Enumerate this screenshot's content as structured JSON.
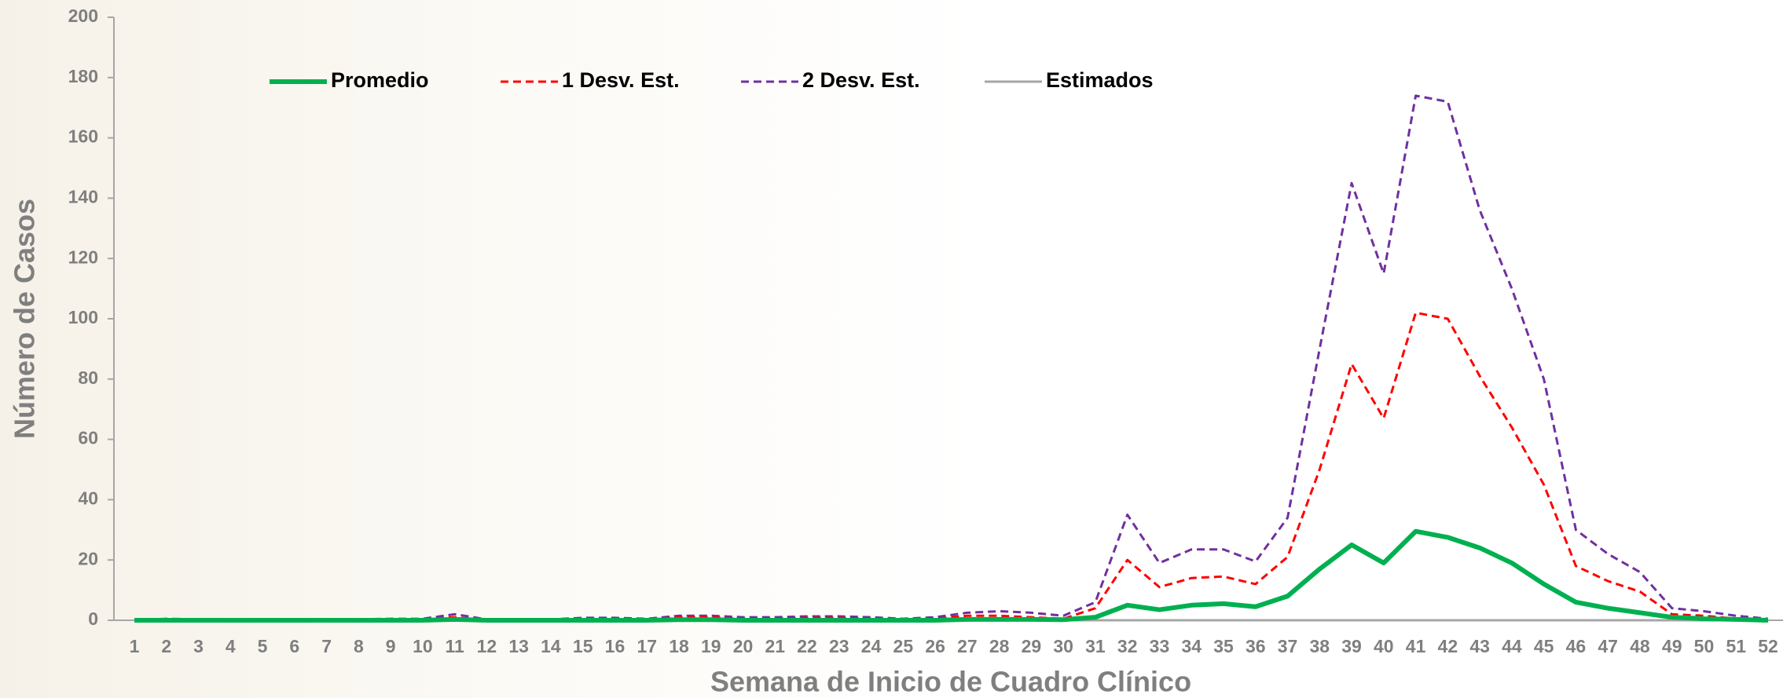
{
  "chart_data": {
    "type": "line",
    "y_label": "Número de Casos",
    "x_label": "Semana de Inicio de Cuadro Clínico",
    "categories": [
      "1",
      "2",
      "3",
      "4",
      "5",
      "6",
      "7",
      "8",
      "9",
      "10",
      "11",
      "12",
      "13",
      "14",
      "15",
      "16",
      "17",
      "18",
      "19",
      "20",
      "21",
      "22",
      "23",
      "24",
      "25",
      "26",
      "27",
      "28",
      "29",
      "30",
      "31",
      "32",
      "33",
      "34",
      "35",
      "36",
      "37",
      "38",
      "39",
      "40",
      "41",
      "42",
      "43",
      "44",
      "45",
      "46",
      "47",
      "48",
      "49",
      "50",
      "51",
      "52"
    ],
    "series": [
      {
        "name": "Promedio",
        "color": "#00b050",
        "width": 6,
        "dashed": false,
        "values": [
          0,
          0,
          0,
          0,
          0,
          0,
          0,
          0,
          0,
          0,
          0.3,
          0,
          0,
          0,
          0,
          0,
          0,
          0.2,
          0.2,
          0,
          0,
          0,
          0,
          0,
          0,
          0,
          0.3,
          0.3,
          0.3,
          0.2,
          1,
          5,
          3.5,
          5,
          5.5,
          4.5,
          8,
          17,
          25,
          19,
          29.5,
          27.5,
          24,
          19,
          12,
          6,
          4,
          2.5,
          1,
          0.5,
          0.3,
          0
        ]
      },
      {
        "name": "1 Desv. Est.",
        "color": "#ff0000",
        "width": 3,
        "dashed": true,
        "values": [
          0.3,
          0.3,
          0.3,
          0.3,
          0.3,
          0.3,
          0.3,
          0.3,
          0.3,
          0.3,
          1,
          0,
          0,
          0.3,
          0.5,
          0.5,
          0.3,
          1,
          1,
          0.5,
          0.5,
          0.8,
          0.8,
          0.5,
          0.3,
          0.5,
          1.5,
          1.5,
          1,
          0.5,
          4,
          20,
          11,
          14,
          14.5,
          12,
          21,
          50,
          85,
          67,
          102,
          100,
          81,
          64,
          45,
          18,
          13,
          9.5,
          2,
          1.5,
          0.5,
          0
        ]
      },
      {
        "name": "2 Desv. Est.",
        "color": "#7030a0",
        "width": 3,
        "dashed": true,
        "values": [
          0,
          0.5,
          0.3,
          0.3,
          0.3,
          0.3,
          0.3,
          0.3,
          0.5,
          0.5,
          2,
          0.3,
          0.3,
          0.3,
          0.8,
          0.8,
          0.5,
          1.5,
          1.5,
          1,
          1,
          1.3,
          1.3,
          1,
          0.5,
          1,
          2.5,
          3,
          2.5,
          1.5,
          6,
          35,
          19,
          23.5,
          23.5,
          19.5,
          34,
          90,
          145,
          115,
          174,
          172,
          136,
          110,
          80,
          30,
          22,
          16,
          4,
          3,
          1.5,
          0.5
        ]
      },
      {
        "name": "Estimados",
        "color": "#a6a6a6",
        "width": 3,
        "dashed": false,
        "values": [
          0,
          0,
          0,
          0,
          0,
          0,
          0,
          0,
          0,
          0,
          0,
          0,
          0,
          0,
          0,
          0,
          0,
          0,
          0,
          0,
          0,
          0,
          0,
          0,
          0,
          0,
          0,
          0,
          0,
          0,
          0,
          0,
          0,
          0,
          0,
          0,
          0,
          0,
          0,
          0,
          0,
          0,
          0,
          0,
          0,
          0,
          0,
          0,
          0,
          0,
          0,
          0
        ]
      }
    ],
    "ylim": [
      0,
      200
    ],
    "yticks": [
      0,
      20,
      40,
      60,
      80,
      100,
      120,
      140,
      160,
      180,
      200
    ]
  }
}
